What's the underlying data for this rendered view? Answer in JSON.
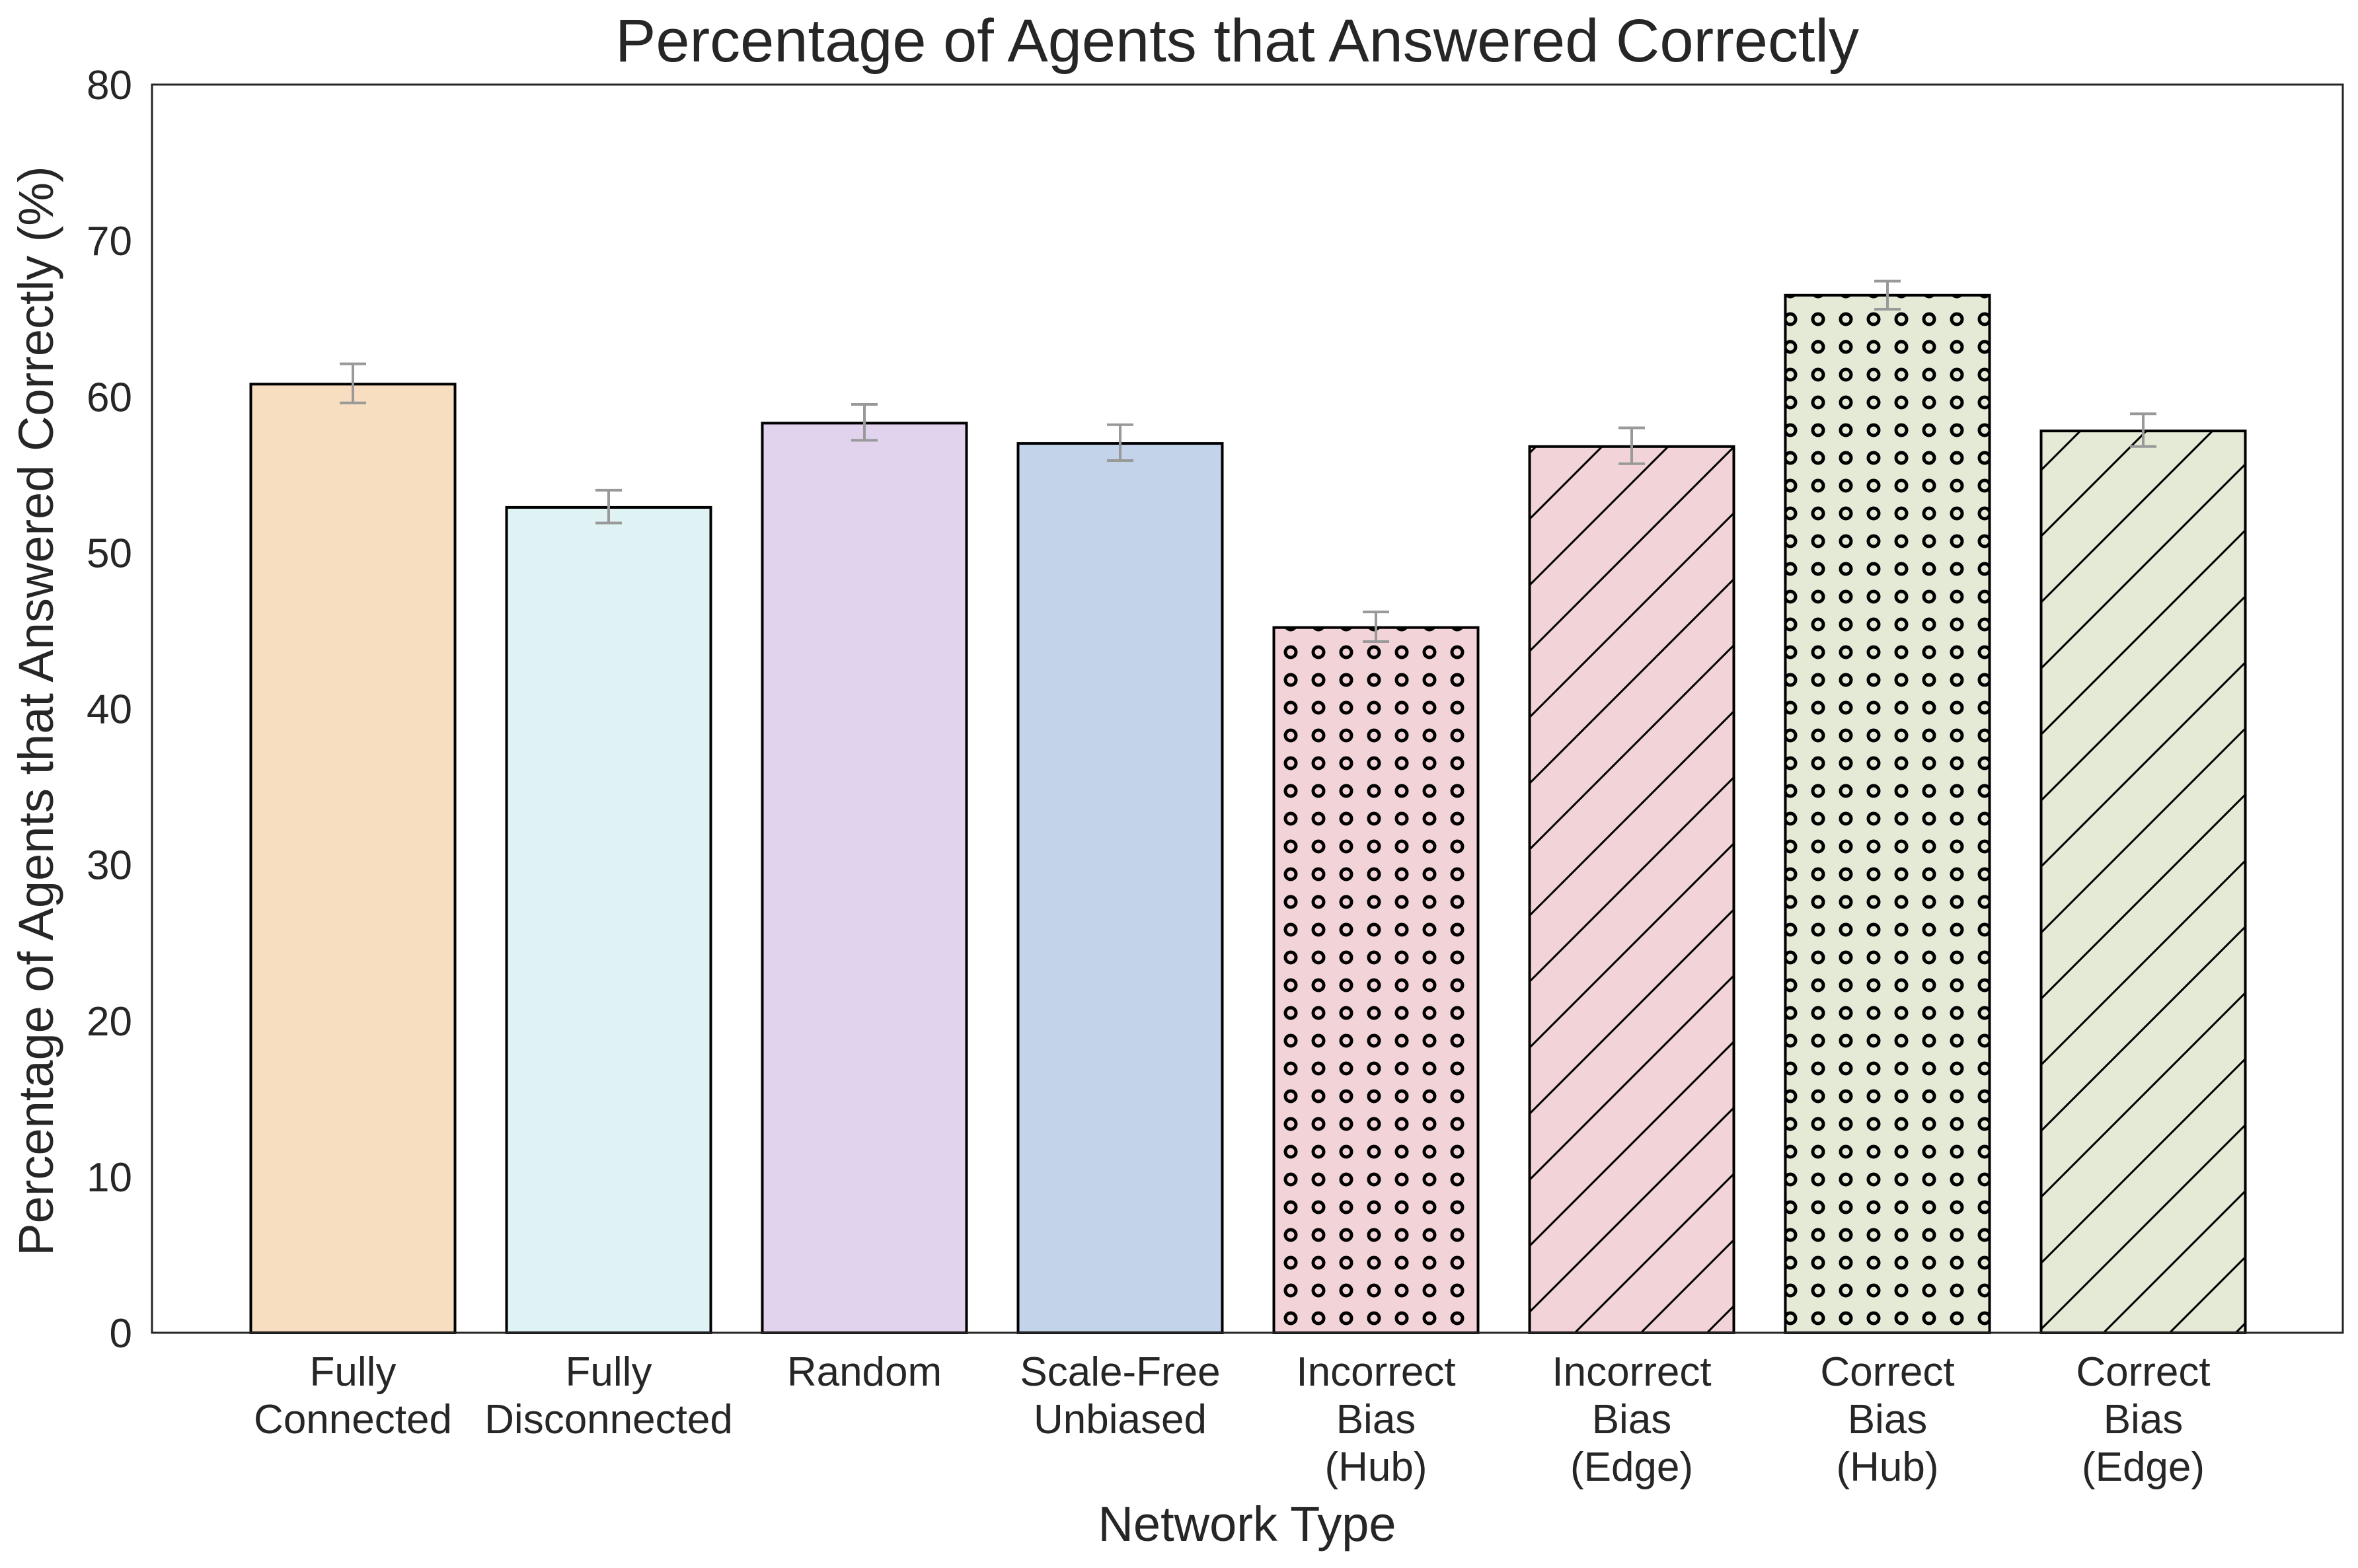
{
  "chart_data": {
    "type": "bar",
    "title": "Percentage of Agents that Answered Correctly",
    "xlabel": "Network Type",
    "ylabel": "Percentage of Agents that Answered Correctly (%)",
    "ylim": [
      0,
      80
    ],
    "yticks": [
      0,
      10,
      20,
      30,
      40,
      50,
      60,
      70,
      80
    ],
    "grid": false,
    "categories": [
      [
        "Fully",
        "Connected"
      ],
      [
        "Fully",
        "Disconnected"
      ],
      [
        "Random"
      ],
      [
        "Scale-Free",
        "Unbiased"
      ],
      [
        "Incorrect",
        "Bias",
        "(Hub)"
      ],
      [
        "Incorrect",
        "Bias",
        "(Edge)"
      ],
      [
        "Correct",
        "Bias",
        "(Hub)"
      ],
      [
        "Correct",
        "Bias",
        "(Edge)"
      ]
    ],
    "values": [
      60.8,
      52.9,
      58.3,
      57.0,
      45.2,
      56.8,
      66.5,
      57.8
    ],
    "error_low": [
      59.6,
      51.9,
      57.2,
      55.9,
      44.3,
      55.7,
      65.6,
      56.8
    ],
    "error_high": [
      62.1,
      54.0,
      59.5,
      58.2,
      46.2,
      58.0,
      67.4,
      58.9
    ],
    "colors": [
      "#f8dec0",
      "#dff3f5",
      "#e1d3ee",
      "#c3d3ea",
      "#f2d4d8",
      "#f2d4d8",
      "#e4ead6",
      "#e4ead6"
    ],
    "patterns": [
      "none",
      "none",
      "none",
      "none",
      "circles",
      "diagonal",
      "circles",
      "diagonal"
    ],
    "edge_color": "#000000",
    "error_color": "#999999"
  }
}
